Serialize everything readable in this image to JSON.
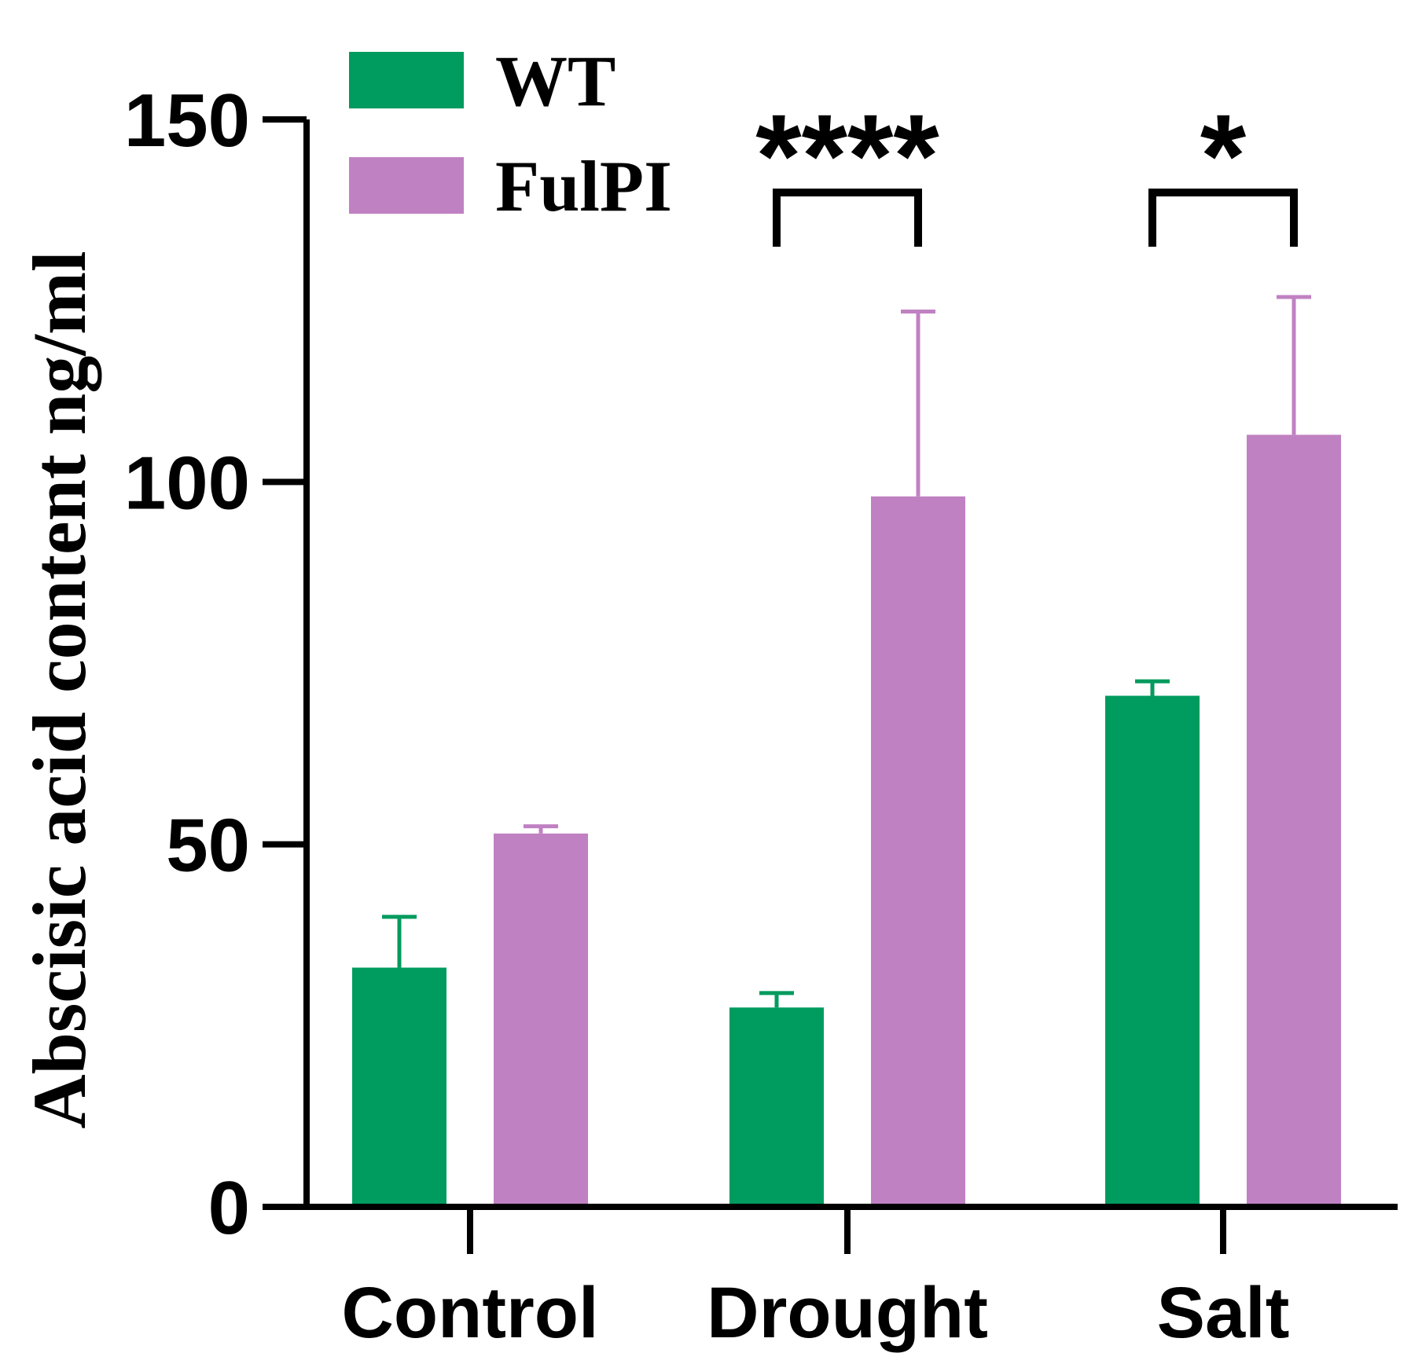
{
  "chart_data": {
    "type": "bar",
    "title": "",
    "xlabel": "",
    "ylabel": "Abscisic acid content ng/ml",
    "ylim": [
      0,
      150
    ],
    "yticks": [
      0,
      50,
      100,
      150
    ],
    "categories": [
      "Control",
      "Drought",
      "Salt"
    ],
    "series": [
      {
        "name": "WT",
        "color": "#009B5E",
        "values": [
          33,
          27.5,
          70.5
        ],
        "errors": [
          7,
          2,
          2
        ]
      },
      {
        "name": "FulPI",
        "color": "#C081C2",
        "values": [
          51.5,
          98,
          106.5
        ],
        "errors": [
          1,
          25.5,
          19
        ]
      }
    ],
    "significance": [
      {
        "category": "Control",
        "label": ""
      },
      {
        "category": "Drought",
        "label": "****"
      },
      {
        "category": "Salt",
        "label": "*"
      }
    ],
    "legend": "top-left"
  }
}
